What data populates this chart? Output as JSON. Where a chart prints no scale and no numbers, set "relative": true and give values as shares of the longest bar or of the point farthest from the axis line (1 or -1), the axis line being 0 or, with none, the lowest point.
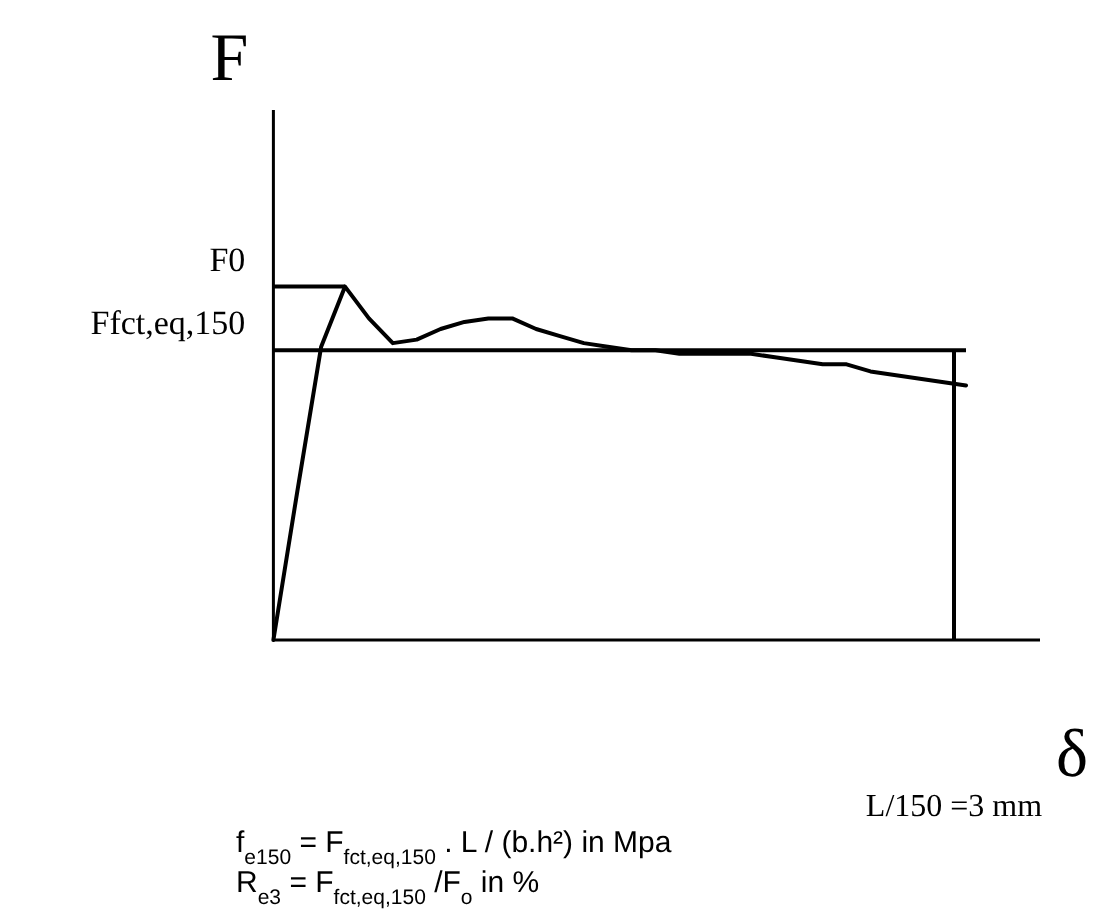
{
  "chart_data": {
    "type": "line",
    "relative": true,
    "ylabel": "F",
    "xlabel": "δ",
    "marker": "none",
    "line_style": "solid",
    "categories": [
      null,
      null,
      null,
      null,
      null,
      null,
      null,
      null,
      null,
      null,
      null,
      null,
      null,
      null,
      null,
      null,
      null,
      null,
      null,
      null,
      null,
      null,
      null,
      null,
      null,
      null,
      null,
      null,
      null,
      null
    ],
    "series": [
      {
        "color": "#000000",
        "values": [
          0,
          0.42,
          0.83,
          1,
          0.91,
          0.84,
          0.85,
          0.88,
          0.9,
          0.91,
          0.91,
          0.88,
          0.86,
          0.84,
          0.83,
          0.82,
          0.82,
          0.81,
          0.81,
          0.81,
          0.81,
          0.8,
          0.79,
          0.78,
          0.78,
          0.76,
          0.75,
          0.74,
          0.73,
          0.72
        ]
      }
    ],
    "ref_lines": [
      {
        "axis": "y",
        "value": 1,
        "label": "F0"
      },
      {
        "axis": "y",
        "value": 0.82,
        "label": "Ffct,eq,150"
      }
    ],
    "annotations": [
      "L/150 =3 mm",
      "f$_{e150}$ = F$_{fct,eq,150}$ . L / (b.h²) in Mpa",
      "R$_{e3}$ = F$_{fct,eq,150}$ /F$_{o}$ in %"
    ]
  }
}
